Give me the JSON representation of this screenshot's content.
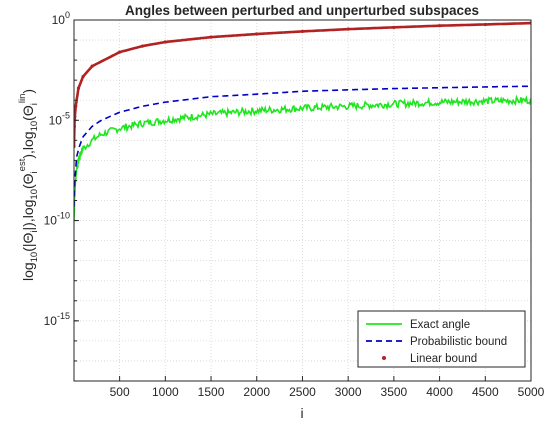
{
  "colors": {
    "exact": "#1ee61e",
    "probabilistic": "#0000c8",
    "linear": "#b22222",
    "grid": "#d4d4d4",
    "axes": "#262626"
  },
  "chart_data": {
    "type": "line",
    "title": "Angles between perturbed and unperturbed subspaces",
    "xlabel": "i",
    "ylabel": "log10(|Θi|),log10(Θi est),log10(Θi lin)",
    "ylabel_parts": {
      "a": "log",
      "a_sub": "10",
      "b": "(|Θ",
      "b_sub": "i",
      "c": "|),log",
      "c_sub": "10",
      "d": "(Θ",
      "d_sub": "i",
      "d_sup": "est",
      "e": "),log",
      "e_sub": "10",
      "f": "(Θ",
      "f_sub": "i",
      "f_sup": "lin",
      "g": ")"
    },
    "x_scale": "linear",
    "y_scale": "log",
    "xlim": [
      1,
      5000
    ],
    "ylim": [
      1e-18,
      1
    ],
    "x_ticks": [
      500,
      1000,
      1500,
      2000,
      2500,
      3000,
      3500,
      4000,
      4500,
      5000
    ],
    "x_tick_labels": [
      "500",
      "1000",
      "1500",
      "2000",
      "2500",
      "3000",
      "3500",
      "4000",
      "4500",
      "5000"
    ],
    "y_ticks": [
      {
        "value": 1.0,
        "base": "10",
        "exp": "0"
      },
      {
        "value": 1e-05,
        "base": "10",
        "exp": "-5"
      },
      {
        "value": 1e-10,
        "base": "10",
        "exp": "-10"
      },
      {
        "value": 1e-15,
        "base": "10",
        "exp": "-15"
      }
    ],
    "grid": true,
    "legend_position": "bottom-right",
    "series": [
      {
        "name": "Exact angle",
        "style": "solid",
        "color": "#1ee61e",
        "x": [
          1,
          10,
          30,
          60,
          100,
          200,
          300,
          500,
          750,
          1000,
          1500,
          2000,
          2500,
          3000,
          3500,
          4000,
          4500,
          5000
        ],
        "y": [
          1e-10,
          3e-09,
          4e-08,
          1.5e-07,
          4e-07,
          1e-06,
          2e-06,
          4e-06,
          7e-06,
          1e-05,
          2e-05,
          3e-05,
          4e-05,
          5e-05,
          6.5e-05,
          8e-05,
          9e-05,
          0.0001
        ]
      },
      {
        "name": "Probabilistic bound",
        "style": "dashed",
        "color": "#0000c8",
        "x": [
          1,
          10,
          30,
          60,
          100,
          200,
          300,
          500,
          750,
          1000,
          1500,
          2000,
          2500,
          3000,
          3500,
          4000,
          4500,
          5000
        ],
        "y": [
          5e-10,
          1e-08,
          1.5e-07,
          5e-07,
          1.5e-06,
          5e-06,
          1e-05,
          2.5e-05,
          5e-05,
          8e-05,
          0.00015,
          0.0002,
          0.00028,
          0.00033,
          0.00038,
          0.00042,
          0.00046,
          0.0005
        ]
      },
      {
        "name": "Linear bound",
        "style": "dots",
        "color": "#b22222",
        "x": [
          1,
          5,
          10,
          20,
          50,
          100,
          200,
          500,
          750,
          1000,
          1500,
          2000,
          2500,
          3000,
          3500,
          4000,
          4500,
          5000
        ],
        "y": [
          5e-07,
          5e-06,
          1.5e-05,
          5e-05,
          0.0004,
          0.0015,
          0.005,
          0.025,
          0.05,
          0.08,
          0.14,
          0.2,
          0.27,
          0.35,
          0.43,
          0.52,
          0.6,
          0.7
        ]
      }
    ]
  }
}
